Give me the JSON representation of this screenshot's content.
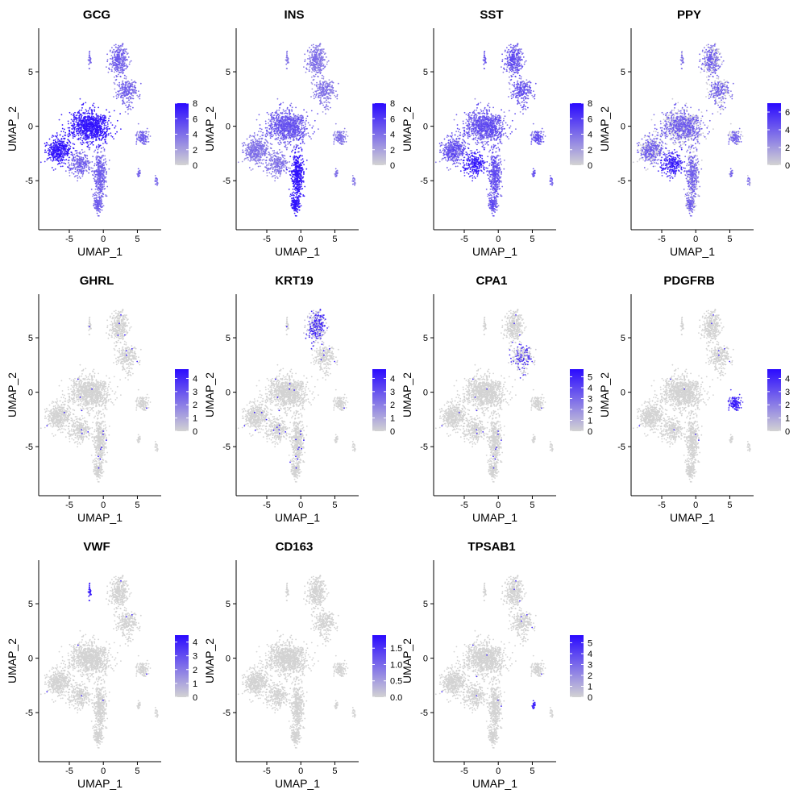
{
  "chart_data": [
    {
      "type": "scatter",
      "title": "GCG",
      "xlabel": "UMAP_1",
      "ylabel": "UMAP_2",
      "xlim": [
        -9.5,
        8.5
      ],
      "ylim": [
        -9.5,
        9
      ],
      "x_ticks": [
        "-5",
        "0",
        "5"
      ],
      "y_ticks": [
        "-5",
        "0",
        "5"
      ],
      "legend": {
        "position": "right",
        "min": 0,
        "max": 8,
        "ticks": [
          "0",
          "2",
          "4",
          "6",
          "8"
        ],
        "low_color": "#d3d3d3",
        "high_color": "#2a0aff"
      },
      "expression_pattern": "high-in-alpha-cluster"
    },
    {
      "type": "scatter",
      "title": "INS",
      "xlabel": "UMAP_1",
      "ylabel": "UMAP_2",
      "xlim": [
        -9.5,
        8.5
      ],
      "ylim": [
        -9.5,
        9
      ],
      "x_ticks": [
        "-5",
        "0",
        "5"
      ],
      "y_ticks": [
        "-5",
        "0",
        "5"
      ],
      "legend": {
        "position": "right",
        "min": 0,
        "max": 8,
        "ticks": [
          "0",
          "2",
          "4",
          "6",
          "8"
        ],
        "low_color": "#d3d3d3",
        "high_color": "#2a0aff"
      },
      "expression_pattern": "high-in-beta-cluster"
    },
    {
      "type": "scatter",
      "title": "SST",
      "xlabel": "UMAP_1",
      "ylabel": "UMAP_2",
      "xlim": [
        -9.5,
        8.5
      ],
      "ylim": [
        -9.5,
        9
      ],
      "x_ticks": [
        "-5",
        "0",
        "5"
      ],
      "y_ticks": [
        "-5",
        "0",
        "5"
      ],
      "legend": {
        "position": "right",
        "min": 0,
        "max": 8,
        "ticks": [
          "0",
          "2",
          "4",
          "6",
          "8"
        ],
        "low_color": "#d3d3d3",
        "high_color": "#2a0aff"
      },
      "expression_pattern": "moderate-broad"
    },
    {
      "type": "scatter",
      "title": "PPY",
      "xlabel": "UMAP_1",
      "ylabel": "UMAP_2",
      "xlim": [
        -9.5,
        8.5
      ],
      "ylim": [
        -9.5,
        9
      ],
      "x_ticks": [
        "-5",
        "0",
        "5"
      ],
      "y_ticks": [
        "-5",
        "0",
        "5"
      ],
      "legend": {
        "position": "right",
        "min": 0,
        "max": 7,
        "ticks": [
          "0",
          "2",
          "4",
          "6"
        ],
        "low_color": "#d3d3d3",
        "high_color": "#2a0aff"
      },
      "expression_pattern": "mixed"
    },
    {
      "type": "scatter",
      "title": "GHRL",
      "xlabel": "UMAP_1",
      "ylabel": "UMAP_2",
      "xlim": [
        -9.5,
        8.5
      ],
      "ylim": [
        -9.5,
        9
      ],
      "x_ticks": [
        "-5",
        "0",
        "5"
      ],
      "y_ticks": [
        "-5",
        "0",
        "5"
      ],
      "legend": {
        "position": "right",
        "min": 0,
        "max": 4.7,
        "ticks": [
          "0",
          "1",
          "2",
          "3",
          "4"
        ],
        "low_color": "#d3d3d3",
        "high_color": "#2a0aff"
      },
      "expression_pattern": "sparse"
    },
    {
      "type": "scatter",
      "title": "KRT19",
      "xlabel": "UMAP_1",
      "ylabel": "UMAP_2",
      "xlim": [
        -9.5,
        8.5
      ],
      "ylim": [
        -9.5,
        9
      ],
      "x_ticks": [
        "-5",
        "0",
        "5"
      ],
      "y_ticks": [
        "-5",
        "0",
        "5"
      ],
      "legend": {
        "position": "right",
        "min": 0,
        "max": 4.7,
        "ticks": [
          "0",
          "1",
          "2",
          "3",
          "4"
        ],
        "low_color": "#d3d3d3",
        "high_color": "#2a0aff"
      },
      "expression_pattern": "ductal-cluster"
    },
    {
      "type": "scatter",
      "title": "CPA1",
      "xlabel": "UMAP_1",
      "ylabel": "UMAP_2",
      "xlim": [
        -9.5,
        8.5
      ],
      "ylim": [
        -9.5,
        9
      ],
      "x_ticks": [
        "-5",
        "0",
        "5"
      ],
      "y_ticks": [
        "-5",
        "0",
        "5"
      ],
      "legend": {
        "position": "right",
        "min": 0,
        "max": 5.7,
        "ticks": [
          "0",
          "1",
          "2",
          "3",
          "4",
          "5"
        ],
        "low_color": "#d3d3d3",
        "high_color": "#2a0aff"
      },
      "expression_pattern": "acinar-edge"
    },
    {
      "type": "scatter",
      "title": "PDGFRB",
      "xlabel": "UMAP_1",
      "ylabel": "UMAP_2",
      "xlim": [
        -9.5,
        8.5
      ],
      "ylim": [
        -9.5,
        9
      ],
      "x_ticks": [
        "-5",
        "0",
        "5"
      ],
      "y_ticks": [
        "-5",
        "0",
        "5"
      ],
      "legend": {
        "position": "right",
        "min": 0,
        "max": 4.7,
        "ticks": [
          "0",
          "1",
          "2",
          "3",
          "4"
        ],
        "low_color": "#d3d3d3",
        "high_color": "#2a0aff"
      },
      "expression_pattern": "stellate-cluster"
    },
    {
      "type": "scatter",
      "title": "VWF",
      "xlabel": "UMAP_1",
      "ylabel": "UMAP_2",
      "xlim": [
        -9.5,
        8.5
      ],
      "ylim": [
        -9.5,
        9
      ],
      "x_ticks": [
        "-5",
        "0",
        "5"
      ],
      "y_ticks": [
        "-5",
        "0",
        "5"
      ],
      "legend": {
        "position": "right",
        "min": 0,
        "max": 4.5,
        "ticks": [
          "0",
          "1",
          "2",
          "3",
          "4"
        ],
        "low_color": "#d3d3d3",
        "high_color": "#2a0aff"
      },
      "expression_pattern": "endothelial-cluster"
    },
    {
      "type": "scatter",
      "title": "CD163",
      "xlabel": "UMAP_1",
      "ylabel": "UMAP_2",
      "xlim": [
        -9.5,
        8.5
      ],
      "ylim": [
        -9.5,
        9
      ],
      "x_ticks": [
        "-5",
        "0",
        "5"
      ],
      "y_ticks": [
        "-5",
        "0",
        "5"
      ],
      "legend": {
        "position": "right",
        "min": 0,
        "max": 1.9,
        "ticks": [
          "0.0",
          "0.5",
          "1.0",
          "1.5"
        ],
        "low_color": "#d3d3d3",
        "high_color": "#2a0aff"
      },
      "expression_pattern": "none"
    },
    {
      "type": "scatter",
      "title": "TPSAB1",
      "xlabel": "UMAP_1",
      "ylabel": "UMAP_2",
      "xlim": [
        -9.5,
        8.5
      ],
      "ylim": [
        -9.5,
        9
      ],
      "x_ticks": [
        "-5",
        "0",
        "5"
      ],
      "y_ticks": [
        "-5",
        "0",
        "5"
      ],
      "legend": {
        "position": "right",
        "min": 0,
        "max": 5.7,
        "ticks": [
          "0",
          "1",
          "2",
          "3",
          "4",
          "5"
        ],
        "low_color": "#d3d3d3",
        "high_color": "#2a0aff"
      },
      "expression_pattern": "mast-cluster"
    }
  ]
}
